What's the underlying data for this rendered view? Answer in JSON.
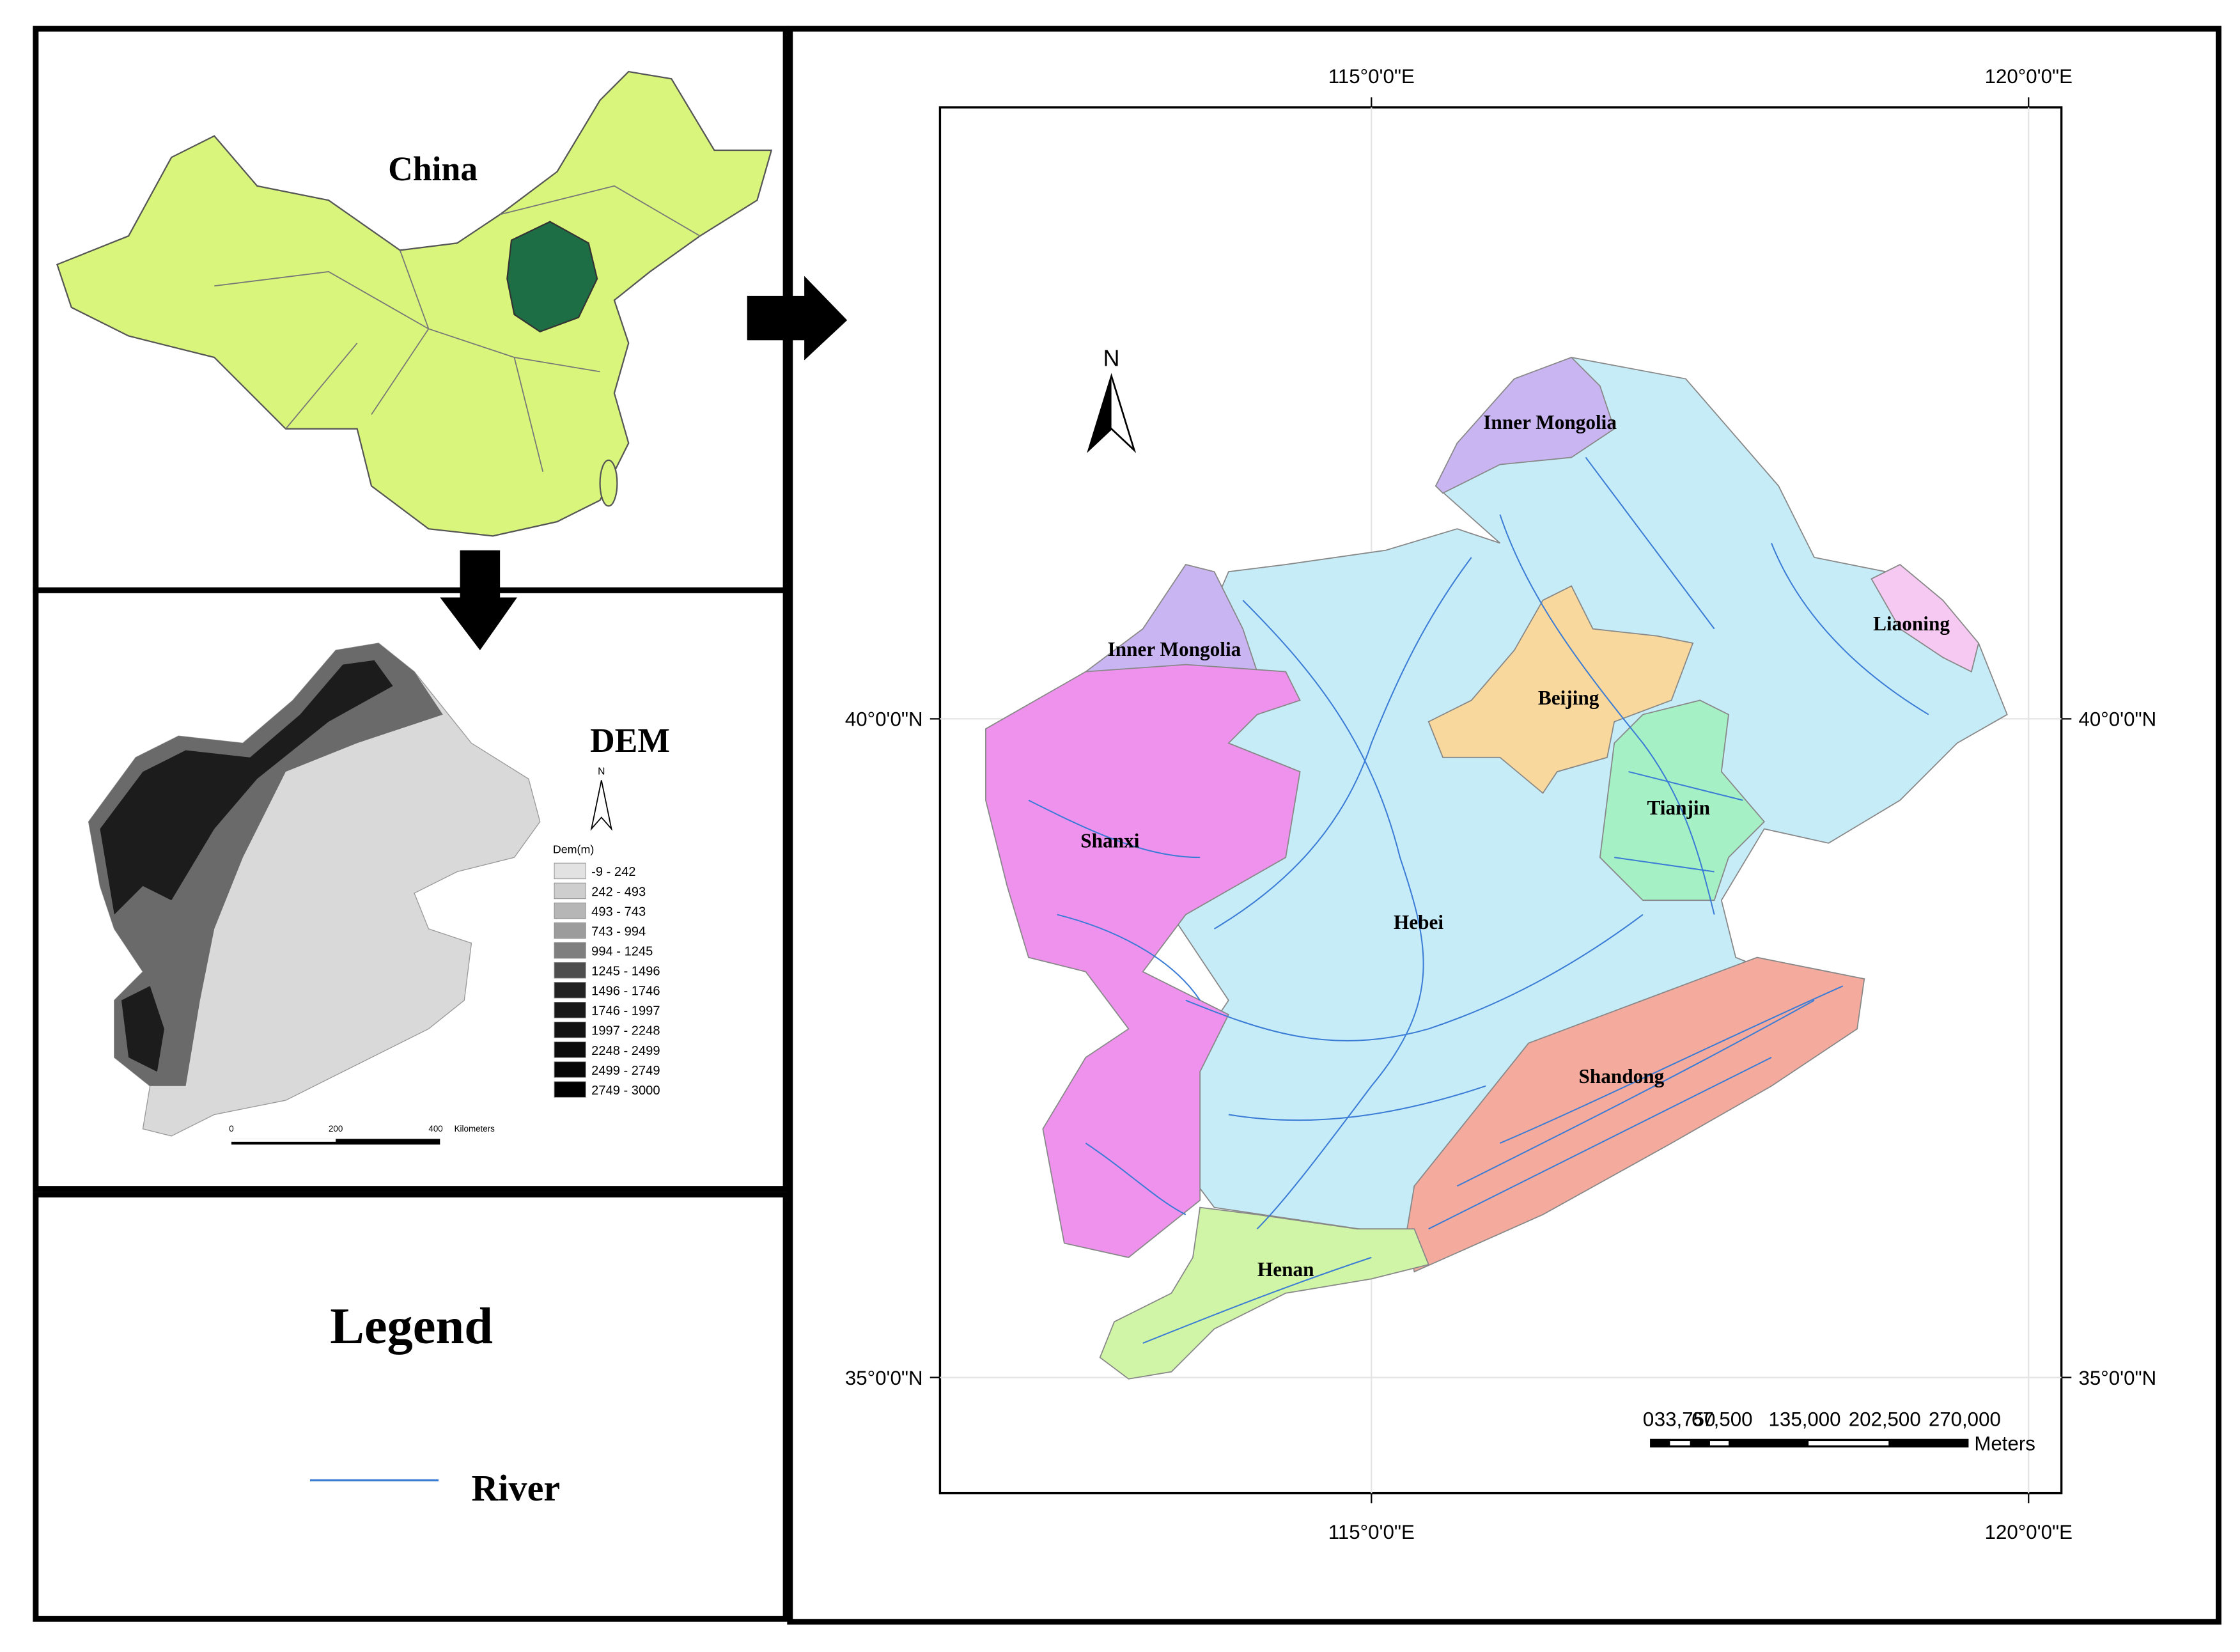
{
  "china_panel": {
    "label": "China"
  },
  "dem_panel": {
    "title": "DEM",
    "north": "N",
    "legend_title": "Dem(m)",
    "classes": [
      {
        "label": "-9 - 242",
        "color": "#e2e2e2"
      },
      {
        "label": "242 - 493",
        "color": "#cecece"
      },
      {
        "label": "493 - 743",
        "color": "#b6b6b6"
      },
      {
        "label": "743 - 994",
        "color": "#9c9c9c"
      },
      {
        "label": "994 - 1245",
        "color": "#7f7f7f"
      },
      {
        "label": "1245 - 1496",
        "color": "#4e4e4e"
      },
      {
        "label": "1496 - 1746",
        "color": "#222222"
      },
      {
        "label": "1746 - 1997",
        "color": "#181818"
      },
      {
        "label": "1997 - 2248",
        "color": "#121212"
      },
      {
        "label": "2248 - 2499",
        "color": "#0c0c0c"
      },
      {
        "label": "2499 - 2749",
        "color": "#060606"
      },
      {
        "label": "2749 - 3000",
        "color": "#000000"
      }
    ],
    "scale": [
      "0",
      "200",
      "400",
      "Kilometers"
    ]
  },
  "legend_panel": {
    "title": "Legend",
    "items": [
      {
        "label": "River",
        "color": "#3a7bd5"
      }
    ]
  },
  "main_map": {
    "north": "N",
    "graticule": {
      "top": [
        "115°0'0\"E",
        "120°0'0\"E"
      ],
      "bottom": [
        "115°0'0\"E",
        "120°0'0\"E"
      ],
      "left": [
        "40°0'0\"N",
        "35°0'0\"N"
      ],
      "right": [
        "40°0'0\"N",
        "35°0'0\"N"
      ]
    },
    "regions": [
      {
        "label": "Hebei",
        "color": "#c6ecf8"
      },
      {
        "label": "Inner Mongolia",
        "color": "#c9b5f2"
      },
      {
        "label": "Inner Mongolia",
        "color": "#c9b5f2"
      },
      {
        "label": "Shanxi",
        "color": "#ee92ee"
      },
      {
        "label": "Beijing",
        "color": "#f8d89c"
      },
      {
        "label": "Tianjin",
        "color": "#a6f0c6"
      },
      {
        "label": "Liaoning",
        "color": "#f6c9f2"
      },
      {
        "label": "Shandong",
        "color": "#f4ab9d"
      },
      {
        "label": "Henan",
        "color": "#d0f5a6"
      }
    ],
    "scale_bar": {
      "labels": [
        "0",
        "33,750",
        "67,500",
        "135,000",
        "202,500",
        "270,000"
      ],
      "unit": "Meters"
    }
  }
}
